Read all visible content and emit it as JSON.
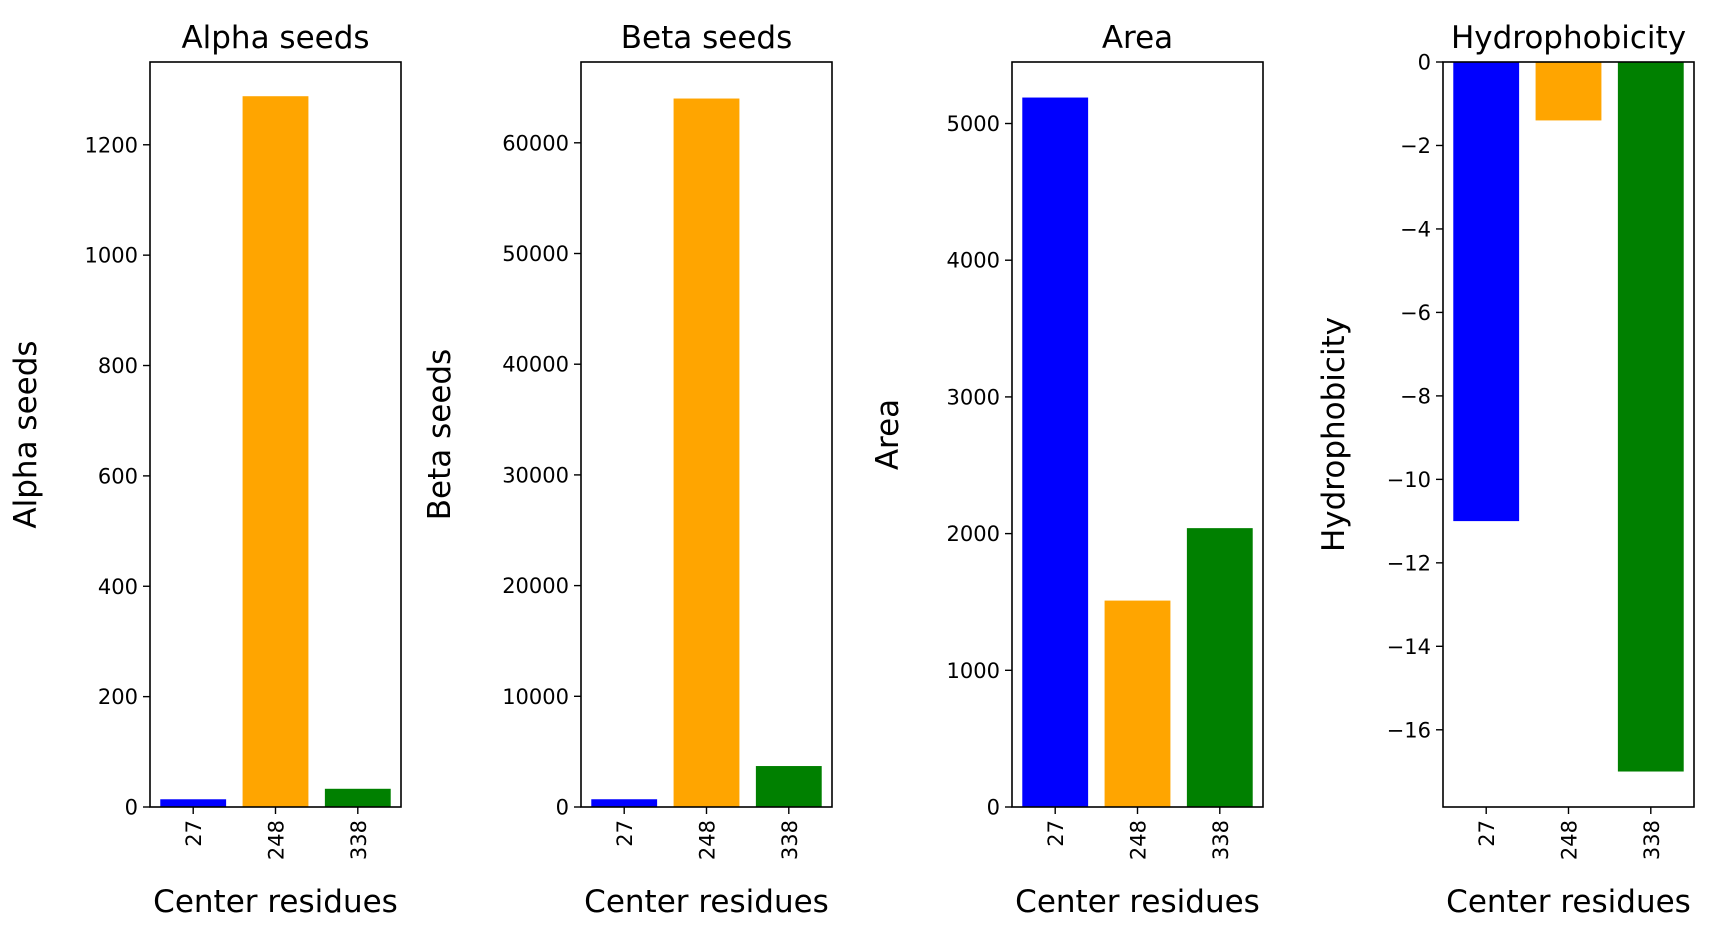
{
  "chart_data": [
    {
      "type": "bar",
      "title": "Alpha seeds",
      "xlabel": "Center residues",
      "ylabel": "Alpha seeds",
      "categories": [
        "27",
        "248",
        "338"
      ],
      "values": [
        14,
        1288,
        33
      ],
      "colors": [
        "#0000ff",
        "#ffa500",
        "#008000"
      ],
      "ylim": [
        0,
        1350
      ],
      "yticks": [
        0,
        200,
        400,
        600,
        800,
        1000,
        1200
      ],
      "grid": false
    },
    {
      "type": "bar",
      "title": "Beta seeds",
      "xlabel": "Center residues",
      "ylabel": "Beta seeds",
      "categories": [
        "27",
        "248",
        "338"
      ],
      "values": [
        700,
        64000,
        3700
      ],
      "colors": [
        "#0000ff",
        "#ffa500",
        "#008000"
      ],
      "ylim": [
        0,
        67300
      ],
      "yticks": [
        0,
        10000,
        20000,
        30000,
        40000,
        50000,
        60000
      ],
      "grid": false
    },
    {
      "type": "bar",
      "title": "Area",
      "xlabel": "Center residues",
      "ylabel": "Area",
      "categories": [
        "27",
        "248",
        "338"
      ],
      "values": [
        5190,
        1510,
        2040
      ],
      "colors": [
        "#0000ff",
        "#ffa500",
        "#008000"
      ],
      "ylim": [
        0,
        5450
      ],
      "yticks": [
        0,
        1000,
        2000,
        3000,
        4000,
        5000
      ],
      "grid": false
    },
    {
      "type": "bar",
      "title": "Hydrophobicity",
      "xlabel": "Center residues",
      "ylabel": "Hydrophobicity",
      "categories": [
        "27",
        "248",
        "338"
      ],
      "values": [
        -11.0,
        -1.4,
        -17.0
      ],
      "colors": [
        "#0000ff",
        "#ffa500",
        "#008000"
      ],
      "ylim": [
        -17.85,
        0
      ],
      "yticks": [
        0,
        -2,
        -4,
        -6,
        -8,
        -10,
        -12,
        -14,
        -16
      ],
      "ytick_labels": [
        "0",
        "−2",
        "−4",
        "−6",
        "−8",
        "−10",
        "−12",
        "−14",
        "−16"
      ],
      "grid": false
    }
  ]
}
